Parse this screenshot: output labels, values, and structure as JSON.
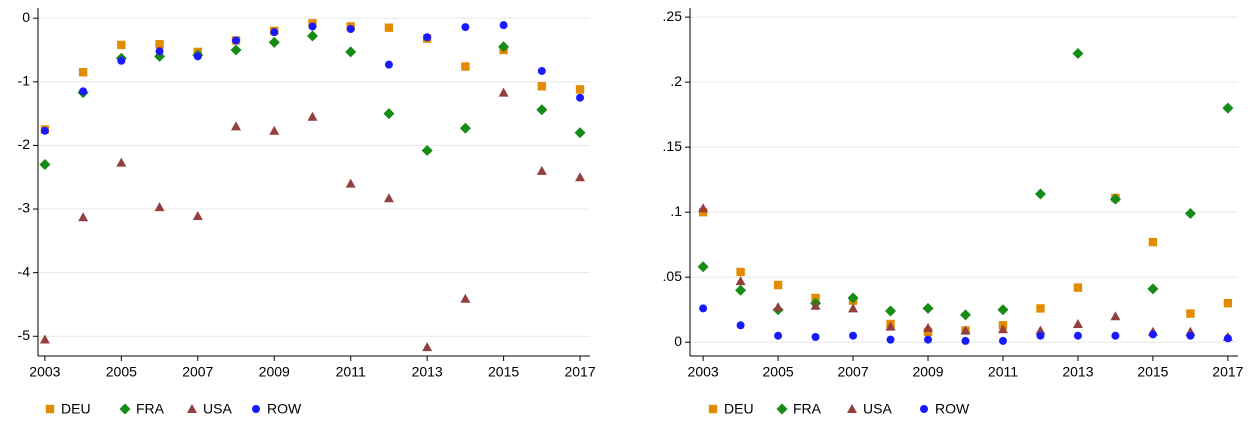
{
  "chart_data": [
    {
      "type": "scatter",
      "x": [
        2003,
        2004,
        2005,
        2006,
        2007,
        2008,
        2009,
        2010,
        2011,
        2012,
        2013,
        2014,
        2015,
        2016,
        2017
      ],
      "xlim": [
        2002.82,
        2017.26
      ],
      "xticks": [
        2003,
        2005,
        2007,
        2009,
        2011,
        2013,
        2015,
        2017
      ],
      "ylim": [
        -5.31,
        0.16
      ],
      "yticks": [
        0,
        -1,
        -2,
        -3,
        -4,
        -5
      ],
      "grid": true,
      "series": [
        {
          "name": "DEU",
          "color": "#e38b00",
          "marker": "square",
          "values": [
            -1.75,
            -0.85,
            -0.42,
            -0.41,
            -0.53,
            -0.35,
            -0.2,
            -0.08,
            -0.13,
            -0.15,
            -0.32,
            -0.76,
            -0.5,
            -1.07,
            -1.12
          ]
        },
        {
          "name": "FRA",
          "color": "#168c16",
          "marker": "diamond",
          "values": [
            -2.3,
            -1.17,
            -0.63,
            -0.6,
            -0.58,
            -0.5,
            -0.38,
            -0.28,
            -0.53,
            -1.5,
            -2.08,
            -1.73,
            -0.45,
            -1.44,
            -1.8
          ]
        },
        {
          "name": "USA",
          "color": "#943f3f",
          "marker": "triangle",
          "values": [
            -5.05,
            -3.13,
            -2.27,
            -2.97,
            -3.11,
            -1.7,
            -1.77,
            -1.55,
            -2.6,
            -2.83,
            -5.17,
            -4.41,
            -1.17,
            -2.4,
            -2.5
          ]
        },
        {
          "name": "ROW",
          "color": "#1a1aff",
          "marker": "circle",
          "values": [
            -1.77,
            -1.15,
            -0.67,
            -0.52,
            -0.6,
            -0.35,
            -0.22,
            -0.13,
            -0.17,
            -0.73,
            -0.3,
            -0.14,
            -0.11,
            -0.83,
            -1.25
          ]
        }
      ]
    },
    {
      "type": "scatter",
      "x": [
        2003,
        2004,
        2005,
        2006,
        2007,
        2008,
        2009,
        2010,
        2011,
        2012,
        2013,
        2014,
        2015,
        2016,
        2017
      ],
      "xlim": [
        2002.65,
        2017.27
      ],
      "xticks": [
        2003,
        2005,
        2007,
        2009,
        2011,
        2013,
        2015,
        2017
      ],
      "ylim": [
        -0.0106,
        0.257
      ],
      "yticks": [
        {
          "value": 0.25,
          "label": ".25"
        },
        {
          "value": 0.2,
          "label": ".2"
        },
        {
          "value": 0.15,
          "label": ".15"
        },
        {
          "value": 0.1,
          "label": ".1"
        },
        {
          "value": 0.05,
          "label": ".05"
        },
        0
      ],
      "grid": true,
      "series": [
        {
          "name": "DEU",
          "color": "#e38b00",
          "marker": "square",
          "values": [
            0.1,
            0.054,
            0.044,
            0.034,
            0.032,
            0.014,
            0.008,
            0.009,
            0.013,
            0.026,
            0.042,
            0.111,
            0.077,
            0.022,
            0.03
          ]
        },
        {
          "name": "FRA",
          "color": "#168c16",
          "marker": "diamond",
          "values": [
            0.058,
            0.04,
            0.025,
            0.03,
            0.034,
            0.024,
            0.026,
            0.021,
            0.025,
            0.114,
            0.222,
            0.11,
            0.041,
            0.099,
            0.18
          ]
        },
        {
          "name": "USA",
          "color": "#943f3f",
          "marker": "triangle",
          "values": [
            0.103,
            0.047,
            0.027,
            0.028,
            0.026,
            0.012,
            0.011,
            0.009,
            0.01,
            0.009,
            0.014,
            0.02,
            0.008,
            0.008,
            0.004
          ]
        },
        {
          "name": "ROW",
          "color": "#1a1aff",
          "marker": "circle",
          "values": [
            0.026,
            0.013,
            0.005,
            0.004,
            0.005,
            0.002,
            0.002,
            0.001,
            0.001,
            0.005,
            0.005,
            0.005,
            0.006,
            0.005,
            0.003
          ]
        }
      ]
    }
  ]
}
